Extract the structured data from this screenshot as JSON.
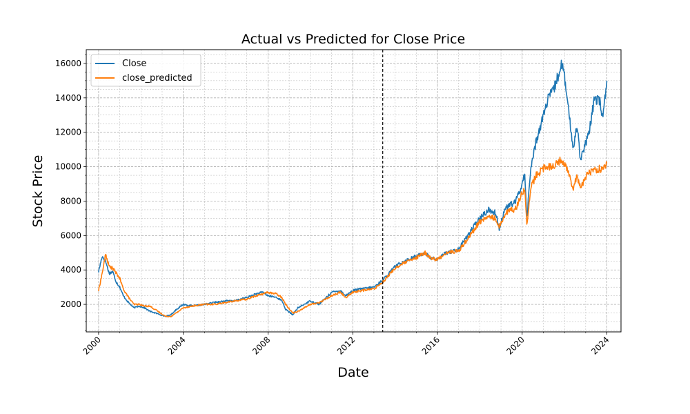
{
  "chart_data": {
    "type": "line",
    "title": "Actual vs Predicted for Close Price",
    "xlabel": "Date",
    "ylabel": "Stock Price",
    "xlim": [
      "1999-06-01",
      "2024-09-01"
    ],
    "ylim": [
      400,
      16800
    ],
    "x_ticks": [
      "2000",
      "2004",
      "2008",
      "2012",
      "2016",
      "2020",
      "2024"
    ],
    "y_ticks": [
      2000,
      4000,
      6000,
      8000,
      10000,
      12000,
      14000,
      16000
    ],
    "grid": true,
    "legend": "top-left",
    "split_date": "2013-06-01",
    "series": [
      {
        "name": "Close",
        "color": "#1f77b4",
        "x": [
          "2000-01-01",
          "2000-03-01",
          "2000-05-01",
          "2000-07-01",
          "2000-09-01",
          "2000-11-01",
          "2001-01-01",
          "2001-03-01",
          "2001-06-01",
          "2001-09-01",
          "2001-12-01",
          "2002-03-01",
          "2002-06-01",
          "2002-09-01",
          "2002-12-01",
          "2003-03-01",
          "2003-06-01",
          "2003-09-01",
          "2004-01-01",
          "2004-06-01",
          "2005-01-01",
          "2005-06-01",
          "2006-01-01",
          "2006-06-01",
          "2007-01-01",
          "2007-06-01",
          "2007-10-01",
          "2008-01-01",
          "2008-06-01",
          "2008-09-01",
          "2008-11-01",
          "2009-03-01",
          "2009-06-01",
          "2010-01-01",
          "2010-06-01",
          "2011-01-01",
          "2011-06-01",
          "2011-09-01",
          "2012-01-01",
          "2012-06-01",
          "2013-01-01",
          "2013-06-01",
          "2014-01-01",
          "2014-06-01",
          "2015-01-01",
          "2015-06-01",
          "2015-09-01",
          "2016-01-01",
          "2016-06-01",
          "2017-01-01",
          "2017-06-01",
          "2018-01-01",
          "2018-06-01",
          "2018-10-01",
          "2018-12-01",
          "2019-03-01",
          "2019-06-01",
          "2019-09-01",
          "2020-01-01",
          "2020-02-15",
          "2020-03-20",
          "2020-06-01",
          "2020-09-01",
          "2021-01-01",
          "2021-04-01",
          "2021-07-01",
          "2021-11-15",
          "2022-01-01",
          "2022-03-01",
          "2022-06-01",
          "2022-08-01",
          "2022-10-01",
          "2022-12-01",
          "2023-03-01",
          "2023-06-01",
          "2023-09-01",
          "2023-10-25",
          "2023-12-31"
        ],
        "values": [
          3900,
          4800,
          4500,
          3800,
          3900,
          3300,
          3000,
          2500,
          2100,
          1800,
          1900,
          1800,
          1600,
          1500,
          1400,
          1300,
          1400,
          1700,
          2000,
          1900,
          2000,
          2100,
          2200,
          2200,
          2400,
          2600,
          2700,
          2500,
          2400,
          2200,
          1700,
          1400,
          1800,
          2200,
          2000,
          2700,
          2800,
          2500,
          2800,
          2900,
          3000,
          3400,
          4200,
          4500,
          4800,
          5000,
          4700,
          4600,
          5000,
          5200,
          6000,
          7000,
          7500,
          7300,
          6400,
          7500,
          7800,
          7900,
          9000,
          9600,
          7000,
          10000,
          11500,
          13000,
          14000,
          14500,
          16000,
          15200,
          13500,
          11000,
          12500,
          10500,
          11000,
          12000,
          14000,
          13800,
          12800,
          15000
        ]
      },
      {
        "name": "close_predicted",
        "color": "#ff7f0e",
        "x": [
          "2000-01-01",
          "2000-03-01",
          "2000-05-01",
          "2000-07-01",
          "2000-09-01",
          "2000-11-01",
          "2001-01-01",
          "2001-03-01",
          "2001-06-01",
          "2001-09-01",
          "2001-12-01",
          "2002-03-01",
          "2002-06-01",
          "2002-09-01",
          "2002-12-01",
          "2003-03-01",
          "2003-06-01",
          "2003-09-01",
          "2004-01-01",
          "2004-06-01",
          "2005-01-01",
          "2005-06-01",
          "2006-01-01",
          "2006-06-01",
          "2007-01-01",
          "2007-06-01",
          "2007-10-01",
          "2008-01-01",
          "2008-06-01",
          "2008-09-01",
          "2008-11-01",
          "2009-03-01",
          "2009-06-01",
          "2010-01-01",
          "2010-06-01",
          "2011-01-01",
          "2011-06-01",
          "2011-09-01",
          "2012-01-01",
          "2012-06-01",
          "2013-01-01",
          "2013-06-01",
          "2014-01-01",
          "2014-06-01",
          "2015-01-01",
          "2015-06-01",
          "2015-09-01",
          "2016-01-01",
          "2016-06-01",
          "2017-01-01",
          "2017-06-01",
          "2018-01-01",
          "2018-06-01",
          "2018-10-01",
          "2018-12-01",
          "2019-03-01",
          "2019-06-01",
          "2019-09-01",
          "2020-01-01",
          "2020-02-15",
          "2020-03-20",
          "2020-06-01",
          "2020-09-01",
          "2021-01-01",
          "2021-04-01",
          "2021-07-01",
          "2021-11-15",
          "2022-01-01",
          "2022-03-01",
          "2022-06-01",
          "2022-08-01",
          "2022-10-01",
          "2022-12-01",
          "2023-03-01",
          "2023-06-01",
          "2023-09-01",
          "2023-10-25",
          "2023-12-31"
        ],
        "values": [
          2800,
          3800,
          4900,
          4200,
          4100,
          3800,
          3500,
          2900,
          2400,
          2000,
          2000,
          1900,
          1900,
          1700,
          1500,
          1300,
          1300,
          1500,
          1800,
          1900,
          2000,
          2000,
          2100,
          2200,
          2300,
          2500,
          2600,
          2700,
          2600,
          2400,
          2000,
          1500,
          1600,
          2000,
          2100,
          2500,
          2700,
          2400,
          2700,
          2800,
          2900,
          3300,
          4100,
          4400,
          4700,
          5000,
          4700,
          4600,
          5000,
          5100,
          5800,
          6800,
          7100,
          7000,
          6500,
          7200,
          7500,
          7500,
          8500,
          8700,
          6600,
          8800,
          9500,
          9900,
          10000,
          10100,
          10400,
          10200,
          9700,
          8800,
          9500,
          8800,
          9200,
          9700,
          9800,
          9900,
          9800,
          10200
        ]
      }
    ]
  }
}
